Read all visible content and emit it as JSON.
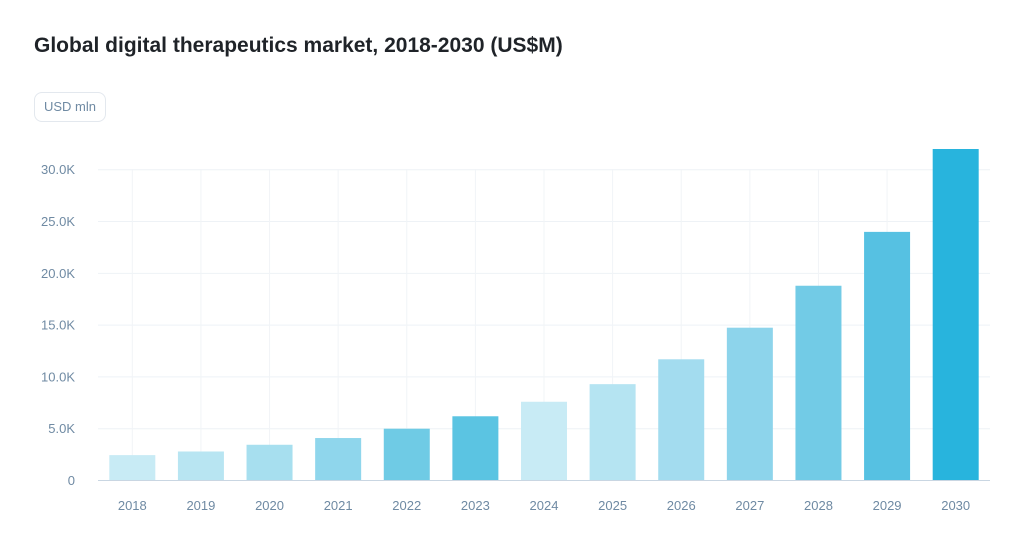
{
  "title": "Global digital therapeutics market, 2018-2030 (US$M)",
  "unit_badge": "USD mln",
  "chart_data": {
    "type": "bar",
    "title": "Global digital therapeutics market, 2018-2030 (US$M)",
    "xlabel": "",
    "ylabel": "USD mln",
    "categories": [
      "2018",
      "2019",
      "2020",
      "2021",
      "2022",
      "2023",
      "2024",
      "2025",
      "2026",
      "2027",
      "2028",
      "2029",
      "2030"
    ],
    "values": [
      2450,
      2800,
      3450,
      4100,
      5000,
      6200,
      7600,
      9300,
      11700,
      14750,
      18800,
      24000,
      32000
    ],
    "colors": [
      "#c8ebf5",
      "#b8e5f2",
      "#a7dfef",
      "#8fd6ec",
      "#6fcbe5",
      "#5bc4e2",
      "#c8ebf5",
      "#b5e4f2",
      "#a3dcef",
      "#8dd4eb",
      "#72cbe6",
      "#56c1e2",
      "#28b4dd"
    ],
    "ylim": [
      0,
      32000
    ],
    "yticks": [
      0,
      5000,
      10000,
      15000,
      20000,
      25000,
      30000
    ],
    "ytick_labels": [
      "0",
      "5.0K",
      "10.0K",
      "15.0K",
      "20.0K",
      "25.0K",
      "30.0K"
    ],
    "grid": true,
    "legend": "none"
  }
}
